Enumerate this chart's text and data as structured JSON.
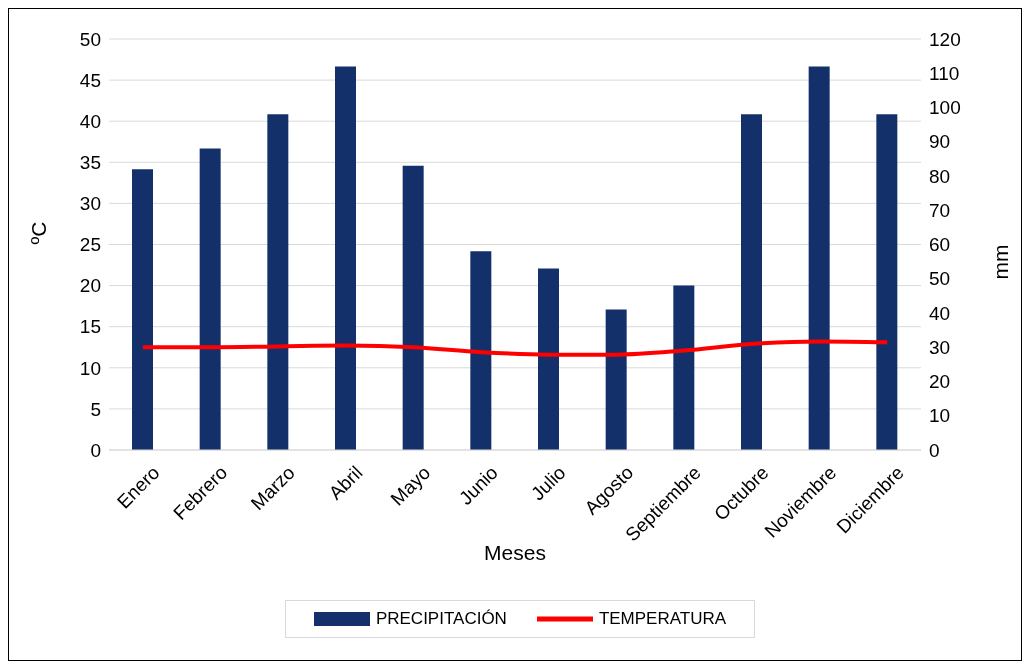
{
  "chart_data": {
    "type": "bar",
    "xlabel": "Meses",
    "ylabel": "ºC",
    "y2label": "mm",
    "categories": [
      "Enero",
      "Febrero",
      "Marzo",
      "Abril",
      "Mayo",
      "Junio",
      "Julio",
      "Agosto",
      "Septiembre",
      "Octubre",
      "Noviembre",
      "Diciembre"
    ],
    "series": [
      {
        "name": "PRECIPITACIÓN",
        "axis": "y2",
        "color": "#14306b",
        "values": [
          82,
          88,
          98,
          112,
          83,
          58,
          53,
          41,
          48,
          98,
          112,
          98
        ]
      },
      {
        "name": "TEMPERATURA",
        "type": "line",
        "color": "#ff0000",
        "values": [
          12.5,
          12.5,
          12.6,
          12.7,
          12.5,
          11.9,
          11.6,
          11.6,
          12.1,
          12.9,
          13.2,
          13.1
        ]
      }
    ],
    "ylim": [
      0,
      50
    ],
    "yticks": [
      0,
      5,
      10,
      15,
      20,
      25,
      30,
      35,
      40,
      45,
      50
    ],
    "y2lim": [
      0,
      120
    ],
    "y2ticks": [
      0,
      10,
      20,
      30,
      40,
      50,
      60,
      70,
      80,
      90,
      100,
      110,
      120
    ],
    "grid": "y",
    "legend": "bottom",
    "marker": "none",
    "line_style": "solid"
  }
}
